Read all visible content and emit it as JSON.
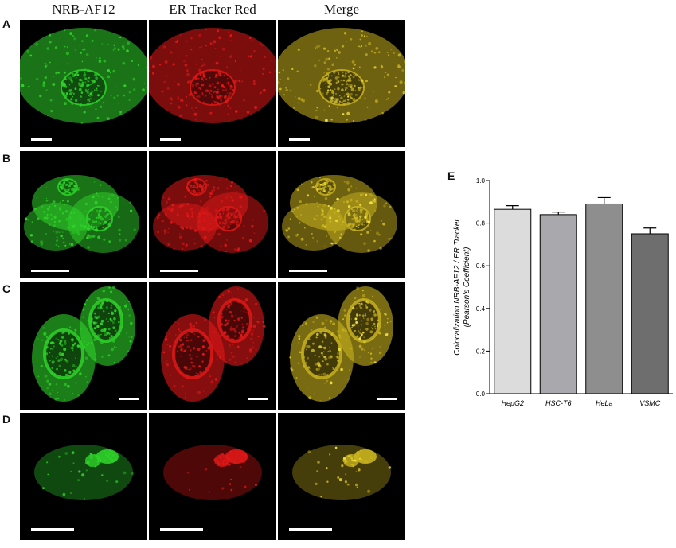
{
  "figure": {
    "column_titles": [
      "NRB-AF12",
      "ER Tracker Red",
      "Merge"
    ],
    "row_labels": [
      "A",
      "B",
      "C",
      "D"
    ],
    "panel_colors": {
      "green": "#2fd22a",
      "red": "#e01818",
      "merge": "#c8b21e"
    },
    "panel_E_label": "E"
  },
  "chart_data": {
    "type": "bar",
    "categories": [
      "HepG2",
      "HSC-T6",
      "HeLa",
      "VSMC"
    ],
    "values": [
      0.865,
      0.84,
      0.89,
      0.75
    ],
    "errors": [
      0.017,
      0.012,
      0.03,
      0.027
    ],
    "ylabel_line1": "Colocalization NRB-AF12 / ER Tracker",
    "ylabel_line2": "(Pearson's Coefficient)",
    "ylim": [
      0,
      1.0
    ],
    "yticks": [
      "0.0",
      "0.2",
      "0.4",
      "0.6",
      "0.8",
      "1.0"
    ],
    "bar_colors": [
      "#dcdcdc",
      "#a9a9ad",
      "#8e8e8e",
      "#6e6e6e"
    ],
    "grid": false
  }
}
